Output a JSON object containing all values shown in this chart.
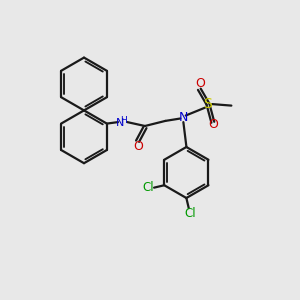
{
  "bg": "#e8e8e8",
  "bond_color": "#1a1a1a",
  "N_color": "#0000cc",
  "O_color": "#cc0000",
  "S_color": "#cccc00",
  "Cl_color": "#009900",
  "lw": 1.6,
  "lw2": 1.3,
  "xlim": [
    0,
    10
  ],
  "ylim": [
    0,
    10
  ]
}
